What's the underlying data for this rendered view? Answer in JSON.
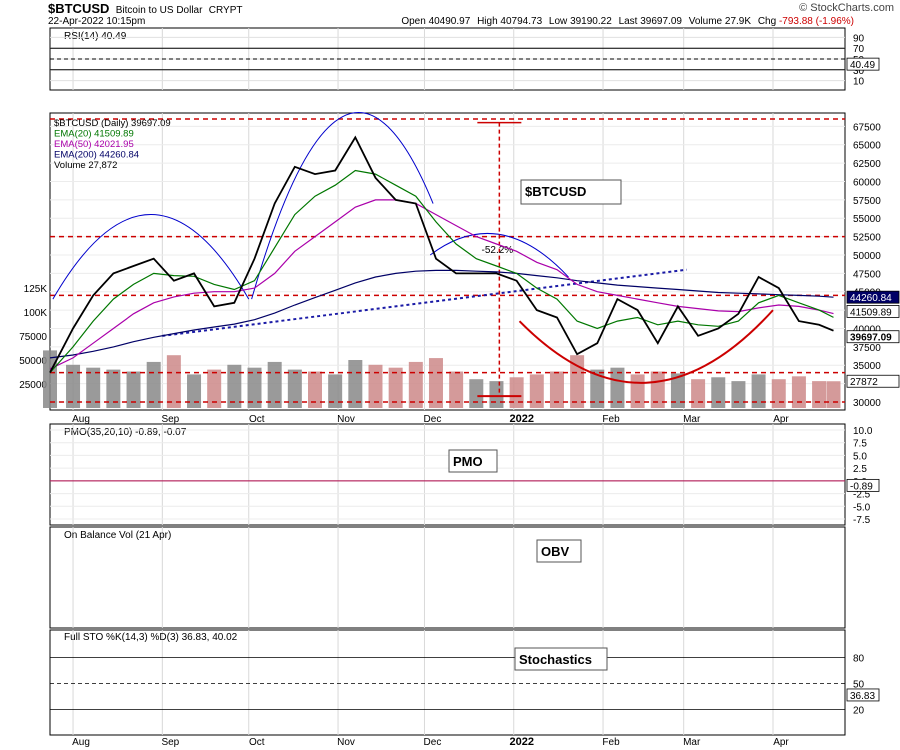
{
  "header": {
    "symbol": "$BTCUSD",
    "name": "Bitcoin to US Dollar",
    "exchange": "CRYPT",
    "datetime": "22-Apr-2022 10:15pm",
    "brand": "© StockCharts.com",
    "quote": {
      "open_label": "Open",
      "open": "40490.97",
      "high_label": "High",
      "high": "40794.73",
      "low_label": "Low",
      "low": "39190.22",
      "last_label": "Last",
      "last": "39697.09",
      "volume_label": "Volume",
      "volume": "27.9K",
      "chg_label": "Chg",
      "chg": "-793.88 (-1.96%)",
      "chg_color": "#cc0000"
    }
  },
  "panels": {
    "rsi": {
      "label": "RSI(14) 40.49",
      "ticks": [
        "90",
        "70",
        "50",
        "30",
        "10"
      ],
      "value_badge": "40.49",
      "overbought": 70,
      "oversold": 30
    },
    "price": {
      "legend": [
        {
          "text": "$BTCUSD (Daily) 39697.09",
          "color": "#000000"
        },
        {
          "text": "EMA(20) 41509.89",
          "color": "#007700"
        },
        {
          "text": "EMA(50) 42021.95",
          "color": "#aa00aa"
        },
        {
          "text": "EMA(200) 44260.84",
          "color": "#000066"
        },
        {
          "text": "Volume 27,872",
          "color": "#000000"
        }
      ],
      "annotation_box": "$BTCUSD",
      "pct_label": "-52.2%",
      "right_ticks": [
        "67500",
        "65000",
        "62500",
        "60000",
        "57500",
        "55000",
        "52500",
        "50000",
        "47500",
        "45000",
        "42500",
        "40000",
        "37500",
        "35000",
        "32500",
        "30000"
      ],
      "left_volume_ticks": [
        "125K",
        "100K",
        "75000",
        "50000",
        "25000"
      ],
      "badges": [
        {
          "text": "44260.84",
          "bg": "#000066",
          "fg": "#ffffff"
        },
        {
          "text": "41509.89",
          "bg": "#ffffff",
          "fg": "#000000"
        },
        {
          "text": "39697.09",
          "bg": "#ffffff",
          "fg": "#000000"
        },
        {
          "text": "27872",
          "bg": "#ffffff",
          "fg": "#000000"
        }
      ]
    },
    "pmo": {
      "label": "PMO(35,20,10) -0.89, -0.07",
      "annotation_box": "PMO",
      "ticks": [
        "10.0",
        "7.5",
        "5.0",
        "2.5",
        "0.0",
        "-2.5",
        "-5.0",
        "-7.5"
      ],
      "value_badge": "-0.89"
    },
    "obv": {
      "label": "On Balance Vol (21 Apr)",
      "annotation_box": "OBV"
    },
    "sto": {
      "label": "Full STO %K(14,3) %D(3) 36.83, 40.02",
      "annotation_box": "Stochastics",
      "ticks": [
        "80",
        "50",
        "20"
      ],
      "value_badge": "36.83"
    }
  },
  "x_axis_labels": [
    "Aug",
    "Sep",
    "Oct",
    "Nov",
    "Dec",
    "2022",
    "Feb",
    "Mar",
    "Apr"
  ],
  "colors": {
    "price": "#000000",
    "ema20": "#007700",
    "ema50": "#aa00aa",
    "ema200": "#000066",
    "volume_bar": "#888888",
    "volume_bar_red": "#cc8888",
    "annotation_red": "#cc0000",
    "arc_blue": "#0000cc",
    "signal_red": "#aa0044"
  },
  "chart_data": {
    "type": "line",
    "title": "$BTCUSD",
    "subtitle": "Bitcoin to US Dollar",
    "x": [
      "2021-07-24",
      "2021-08-01",
      "2021-08-08",
      "2021-08-15",
      "2021-08-22",
      "2021-08-29",
      "2021-09-05",
      "2021-09-12",
      "2021-09-19",
      "2021-09-26",
      "2021-10-03",
      "2021-10-10",
      "2021-10-17",
      "2021-10-24",
      "2021-10-31",
      "2021-11-07",
      "2021-11-14",
      "2021-11-21",
      "2021-11-28",
      "2021-12-05",
      "2021-12-12",
      "2021-12-19",
      "2021-12-26",
      "2022-01-02",
      "2022-01-09",
      "2022-01-16",
      "2022-01-23",
      "2022-01-30",
      "2022-02-06",
      "2022-02-13",
      "2022-02-20",
      "2022-02-27",
      "2022-03-06",
      "2022-03-13",
      "2022-03-20",
      "2022-03-27",
      "2022-04-03",
      "2022-04-10",
      "2022-04-17",
      "2022-04-22"
    ],
    "series": [
      {
        "name": "$BTCUSD (Daily)",
        "values": [
          34000,
          40000,
          44500,
          47500,
          48500,
          49500,
          46500,
          47500,
          43000,
          43500,
          49500,
          57000,
          62000,
          61000,
          61500,
          66000,
          60500,
          57500,
          57000,
          49500,
          47500,
          47500,
          47500,
          46500,
          42500,
          41500,
          36500,
          38000,
          44000,
          42500,
          38000,
          43000,
          39000,
          40000,
          42000,
          47000,
          45500,
          41000,
          40500,
          39697
        ]
      },
      {
        "name": "EMA(20)",
        "values": [
          34000,
          37500,
          41000,
          44000,
          46000,
          47500,
          47200,
          47100,
          46000,
          45300,
          46500,
          51000,
          55500,
          58000,
          59500,
          61500,
          61000,
          59500,
          58000,
          54500,
          51500,
          49500,
          48500,
          47500,
          45500,
          44000,
          41000,
          40000,
          41000,
          41500,
          40500,
          41000,
          40500,
          40300,
          41000,
          43500,
          44500,
          43500,
          42500,
          41510
        ]
      },
      {
        "name": "EMA(50)",
        "values": [
          34500,
          36000,
          38000,
          40000,
          42000,
          43500,
          44300,
          44800,
          45000,
          45000,
          45500,
          47500,
          50500,
          52500,
          54500,
          56500,
          57500,
          57500,
          57000,
          55500,
          54000,
          52500,
          51500,
          50500,
          49000,
          48000,
          46000,
          45000,
          44500,
          44000,
          43500,
          43000,
          42700,
          42400,
          42300,
          42800,
          43200,
          43000,
          42500,
          42022
        ]
      },
      {
        "name": "EMA(200)",
        "values": [
          36000,
          36400,
          36900,
          37500,
          38200,
          38800,
          39300,
          39800,
          40200,
          40600,
          41200,
          42100,
          43200,
          44200,
          45200,
          46200,
          47000,
          47500,
          47800,
          47900,
          47900,
          47800,
          47700,
          47500,
          47200,
          46900,
          46500,
          46200,
          45900,
          45700,
          45500,
          45300,
          45100,
          44900,
          44800,
          44700,
          44600,
          44500,
          44400,
          44261
        ]
      }
    ],
    "volume": [
      60000,
      45000,
      42000,
      40000,
      38000,
      48000,
      55000,
      35000,
      40000,
      45000,
      42000,
      48000,
      40000,
      38000,
      35000,
      50000,
      45000,
      42000,
      48000,
      52000,
      38000,
      30000,
      28000,
      32000,
      35000,
      38000,
      55000,
      40000,
      42000,
      35000,
      38000,
      36000,
      30000,
      32000,
      28000,
      35000,
      30000,
      33000,
      28000,
      27872
    ],
    "ylim": [
      30000,
      68500
    ],
    "volume_ylim": [
      0,
      125000
    ],
    "grid": true,
    "legend": "top-left"
  }
}
